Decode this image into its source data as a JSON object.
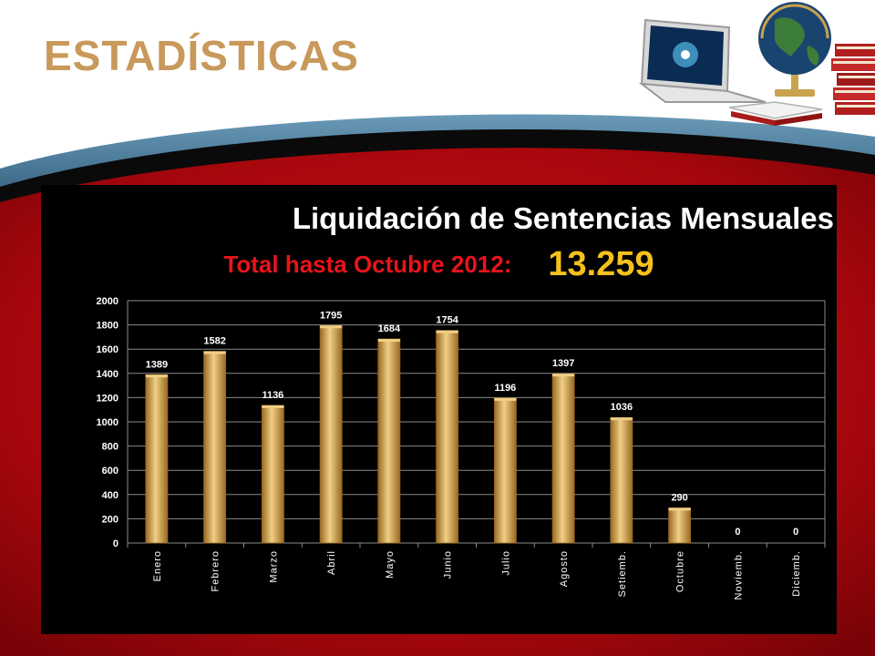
{
  "slide": {
    "title": "ESTADÍSTICAS",
    "colors": {
      "title": "#c8995a",
      "band_red": "#a5070c",
      "band_blue": "#2c5a7a",
      "panel": "#000000"
    },
    "decoration_icons": [
      "laptop-icon",
      "globe-icon",
      "books-icon"
    ]
  },
  "chart_data": {
    "type": "bar",
    "title": "Liquidación de Sentencias Mensuales",
    "subtitle_label": "Total hasta Octubre 2012:",
    "subtitle_value": "13.259",
    "categories": [
      "Enero",
      "Febrero",
      "Marzo",
      "Abril",
      "Mayo",
      "Junio",
      "Julio",
      "Agosto",
      "Setiemb.",
      "Octubre",
      "Noviemb.",
      "Diciemb."
    ],
    "values": [
      1389,
      1582,
      1136,
      1795,
      1684,
      1754,
      1196,
      1397,
      1036,
      290,
      0,
      0
    ],
    "data_labels": [
      "1389",
      "1582",
      "1136",
      "1795",
      "1684",
      "1754",
      "1196",
      "1397",
      "1036",
      "290",
      "0",
      "0"
    ],
    "ylim": [
      0,
      2000
    ],
    "yticks": [
      0,
      200,
      400,
      600,
      800,
      1000,
      1200,
      1400,
      1600,
      1800,
      2000
    ],
    "ytick_labels": [
      "0",
      "200",
      "400",
      "600",
      "800",
      "1000",
      "1200",
      "1400",
      "1600",
      "1800",
      "2000"
    ],
    "xlabel": "",
    "ylabel": "",
    "grid": true,
    "legend": "none",
    "colors": {
      "bar": "#d4a04a",
      "bar_light": "#f0cf86",
      "bar_dark": "#9a6a22",
      "grid": "#8a8a8a",
      "text": "#ffffff",
      "subtitle_label": "#e8141b",
      "subtitle_value": "#f5c11d"
    }
  }
}
